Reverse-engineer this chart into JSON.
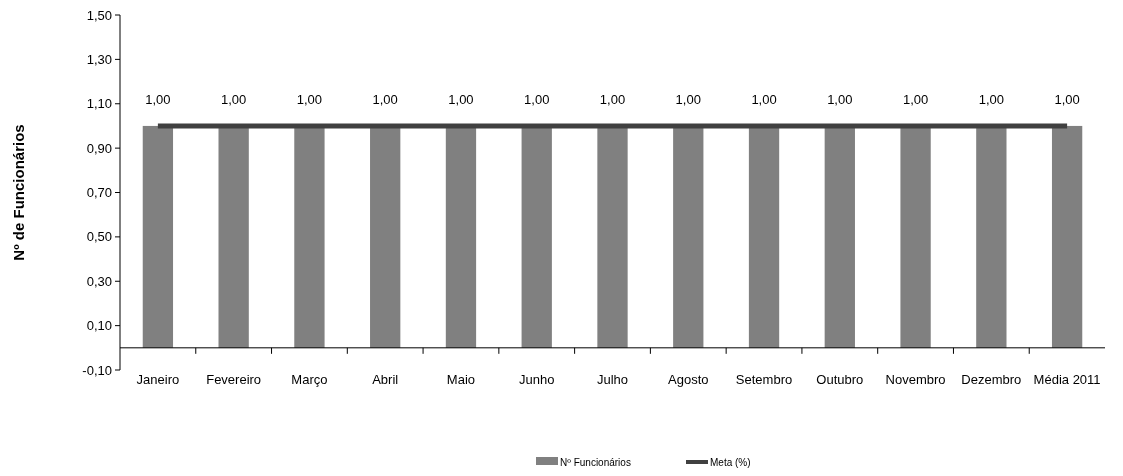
{
  "chart_data": {
    "type": "bar",
    "ylabel": "Nº de Funcionários",
    "categories": [
      "Janeiro",
      "Fevereiro",
      "Março",
      "Abril",
      "Maio",
      "Junho",
      "Julho",
      "Agosto",
      "Setembro",
      "Outubro",
      "Novembro",
      "Dezembro",
      "Média 2011"
    ],
    "series": [
      {
        "name": "Nº Funcionários",
        "color": "#808080",
        "values": [
          1,
          1,
          1,
          1,
          1,
          1,
          1,
          1,
          1,
          1,
          1,
          1,
          1
        ],
        "value_labels": [
          "1,00",
          "1,00",
          "1,00",
          "1,00",
          "1,00",
          "1,00",
          "1,00",
          "1,00",
          "1,00",
          "1,00",
          "1,00",
          "1,00",
          "1,00"
        ]
      },
      {
        "name": "Meta (%)",
        "type": "line",
        "color": "#404040",
        "values": [
          1,
          1,
          1,
          1,
          1,
          1,
          1,
          1,
          1,
          1,
          1,
          1,
          1
        ]
      }
    ],
    "ylim": [
      -0.1,
      1.5
    ],
    "yticks": [
      {
        "value": -0.1,
        "label": "-0,10"
      },
      {
        "value": 0.1,
        "label": "0,10"
      },
      {
        "value": 0.3,
        "label": "0,30"
      },
      {
        "value": 0.5,
        "label": "0,50"
      },
      {
        "value": 0.7,
        "label": "0,70"
      },
      {
        "value": 0.9,
        "label": "0,90"
      },
      {
        "value": 1.1,
        "label": "1,10"
      },
      {
        "value": 1.3,
        "label": "1,30"
      },
      {
        "value": 1.5,
        "label": "1,50"
      }
    ],
    "grid": false,
    "legend": "bottom",
    "marker": "none",
    "line_style": "solid"
  }
}
